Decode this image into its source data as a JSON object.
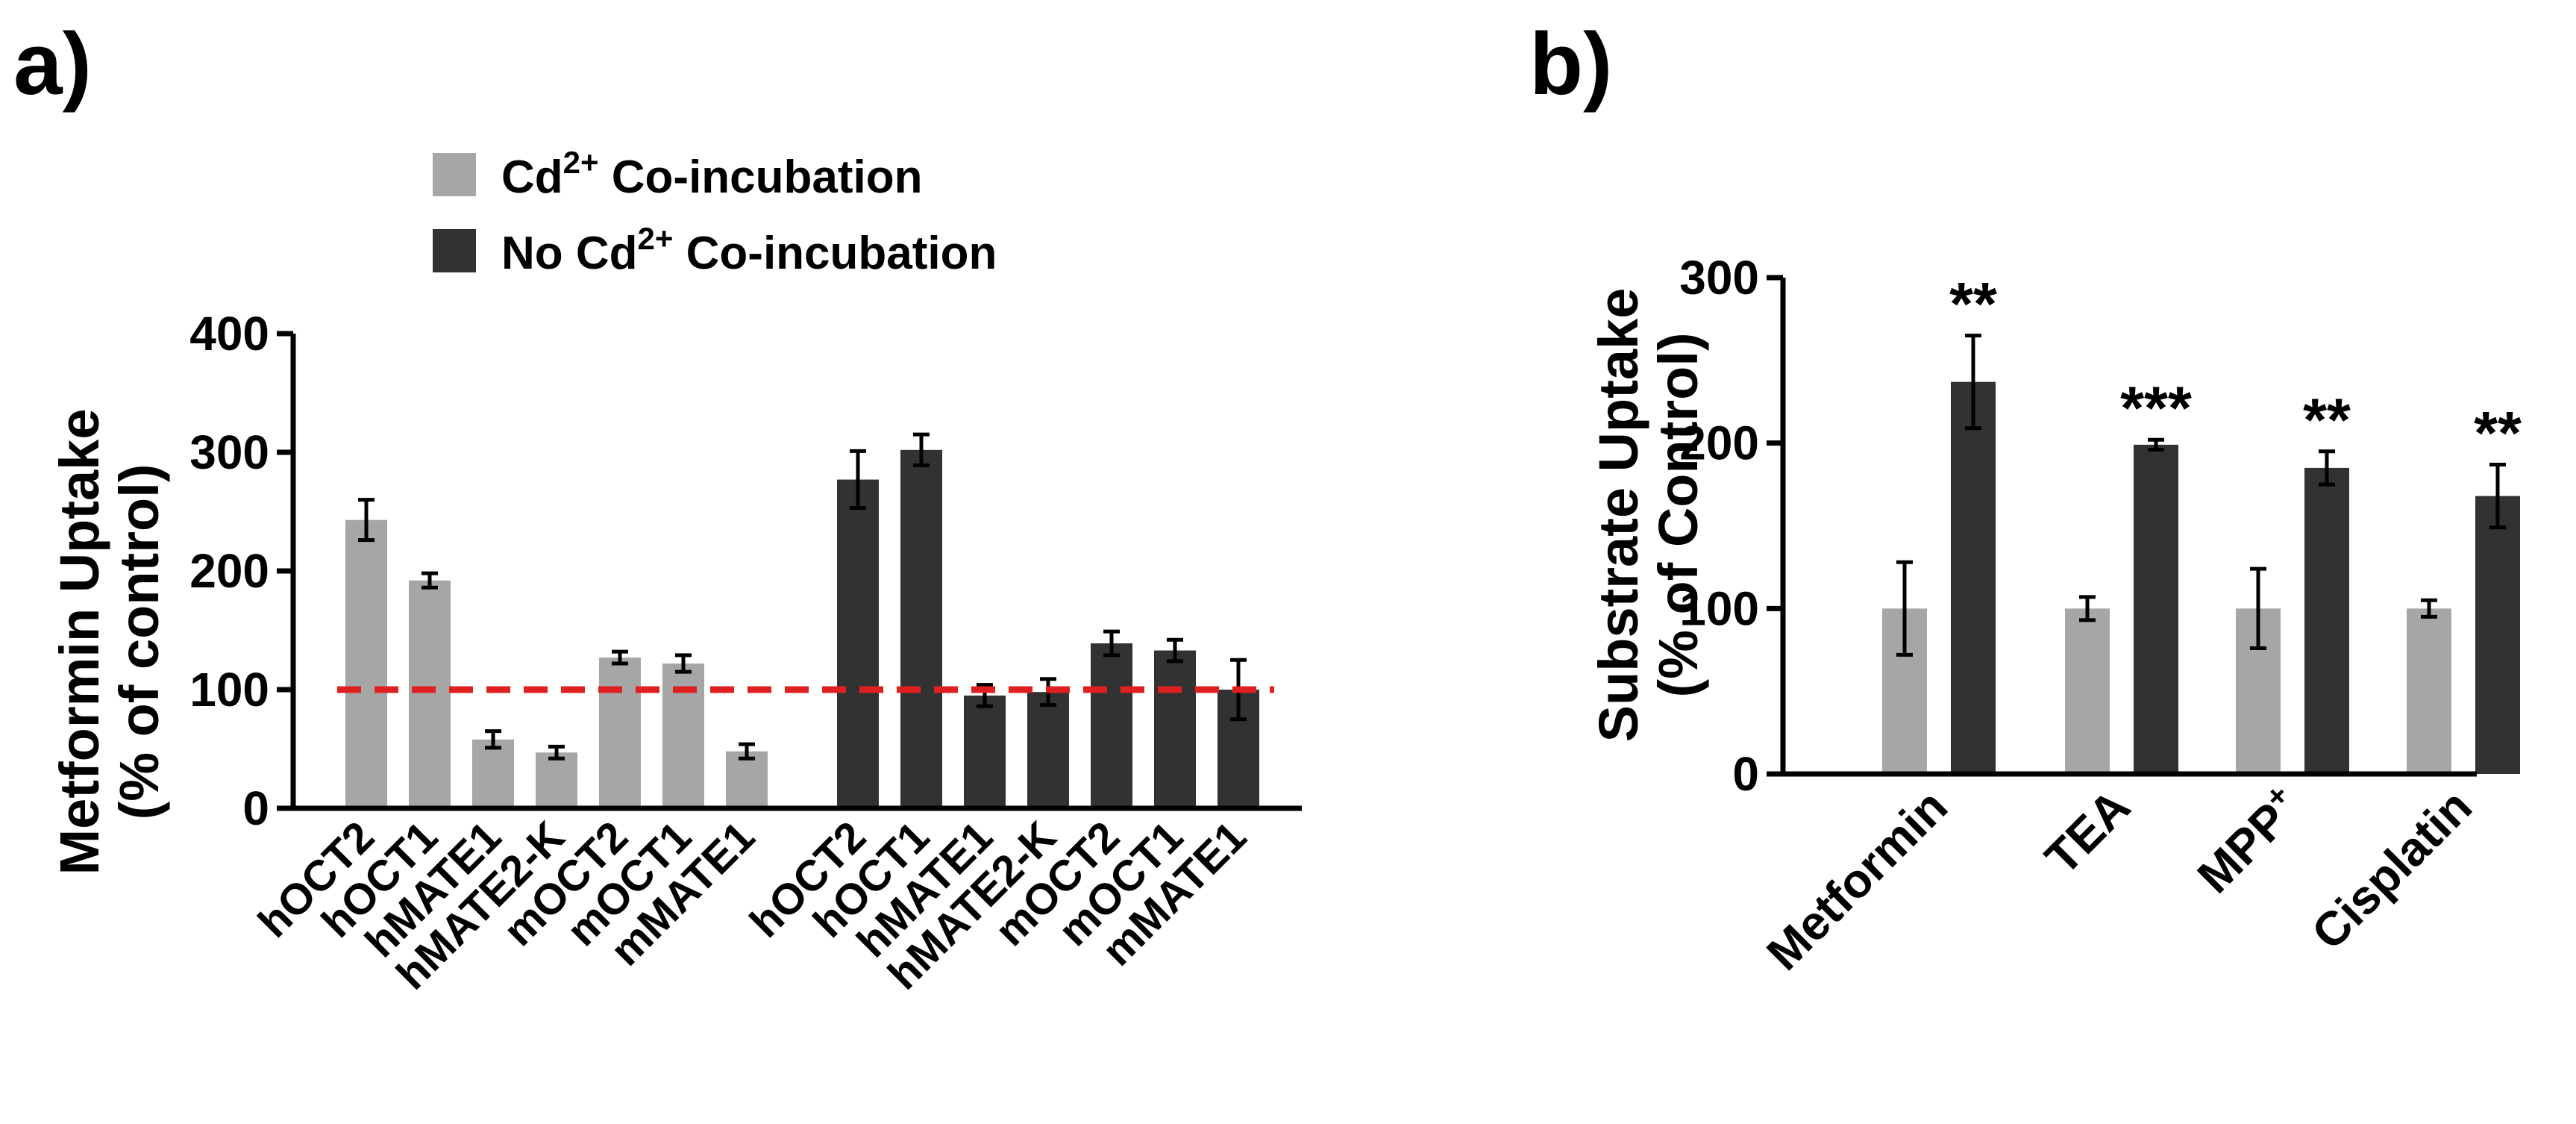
{
  "colors": {
    "cd": "#a6a6a7",
    "nocd": "#323232",
    "reference": "#e02020"
  },
  "chart_data": [
    {
      "panel_label": "a)",
      "type": "bar",
      "ylabel_line1": "Metformin Uptake",
      "ylabel_line2": "(% of control)",
      "ylim": [
        0,
        400
      ],
      "yticks": [
        "0",
        "100",
        "200",
        "300",
        "400"
      ],
      "reference_line": 100,
      "legend": [
        {
          "base": "Cd",
          "sup": "2+",
          "rest": " Co-incubation",
          "series": "cd"
        },
        {
          "base": "No Cd",
          "sup": "2+",
          "rest": " Co-incubation",
          "series": "nocd"
        }
      ],
      "series": [
        {
          "name": "Cd2+ Co-incubation",
          "categories": [
            "hOCT2",
            "hOCT1",
            "hMATE1",
            "hMATE2-K",
            "mOCT2",
            "mOCT1",
            "mMATE1"
          ],
          "values": [
            243,
            192,
            58,
            47,
            127,
            122,
            48
          ],
          "errors": [
            17,
            6,
            7,
            5,
            5,
            7,
            6
          ]
        },
        {
          "name": "No Cd2+ Co-incubation",
          "categories": [
            "hOCT2",
            "hOCT1",
            "hMATE1",
            "hMATE2-K",
            "mOCT2",
            "mOCT1",
            "mMATE1"
          ],
          "values": [
            277,
            302,
            95,
            98,
            139,
            133,
            100
          ],
          "errors": [
            24,
            13,
            9,
            11,
            10,
            9,
            25
          ]
        }
      ]
    },
    {
      "panel_label": "b)",
      "type": "bar",
      "ylabel_line1": "Substrate Uptake",
      "ylabel_line2": "(% of Control)",
      "ylim": [
        0,
        300
      ],
      "yticks": [
        "0",
        "100",
        "200",
        "300"
      ],
      "categories": [
        {
          "base": "Metformin",
          "sup": ""
        },
        {
          "base": "TEA",
          "sup": ""
        },
        {
          "base": "MPP",
          "sup": "+"
        },
        {
          "base": "Cisplatin",
          "sup": ""
        }
      ],
      "series": [
        {
          "name": "Cd2+ Co-incubation",
          "values": [
            100,
            100,
            100,
            100
          ],
          "errors": [
            28,
            7,
            24,
            5
          ]
        },
        {
          "name": "No Cd2+ Co-incubation",
          "values": [
            237,
            199,
            185,
            168
          ],
          "errors": [
            28,
            3,
            10,
            19
          ]
        }
      ],
      "significance": [
        "**",
        "***",
        "**",
        "**"
      ]
    }
  ]
}
